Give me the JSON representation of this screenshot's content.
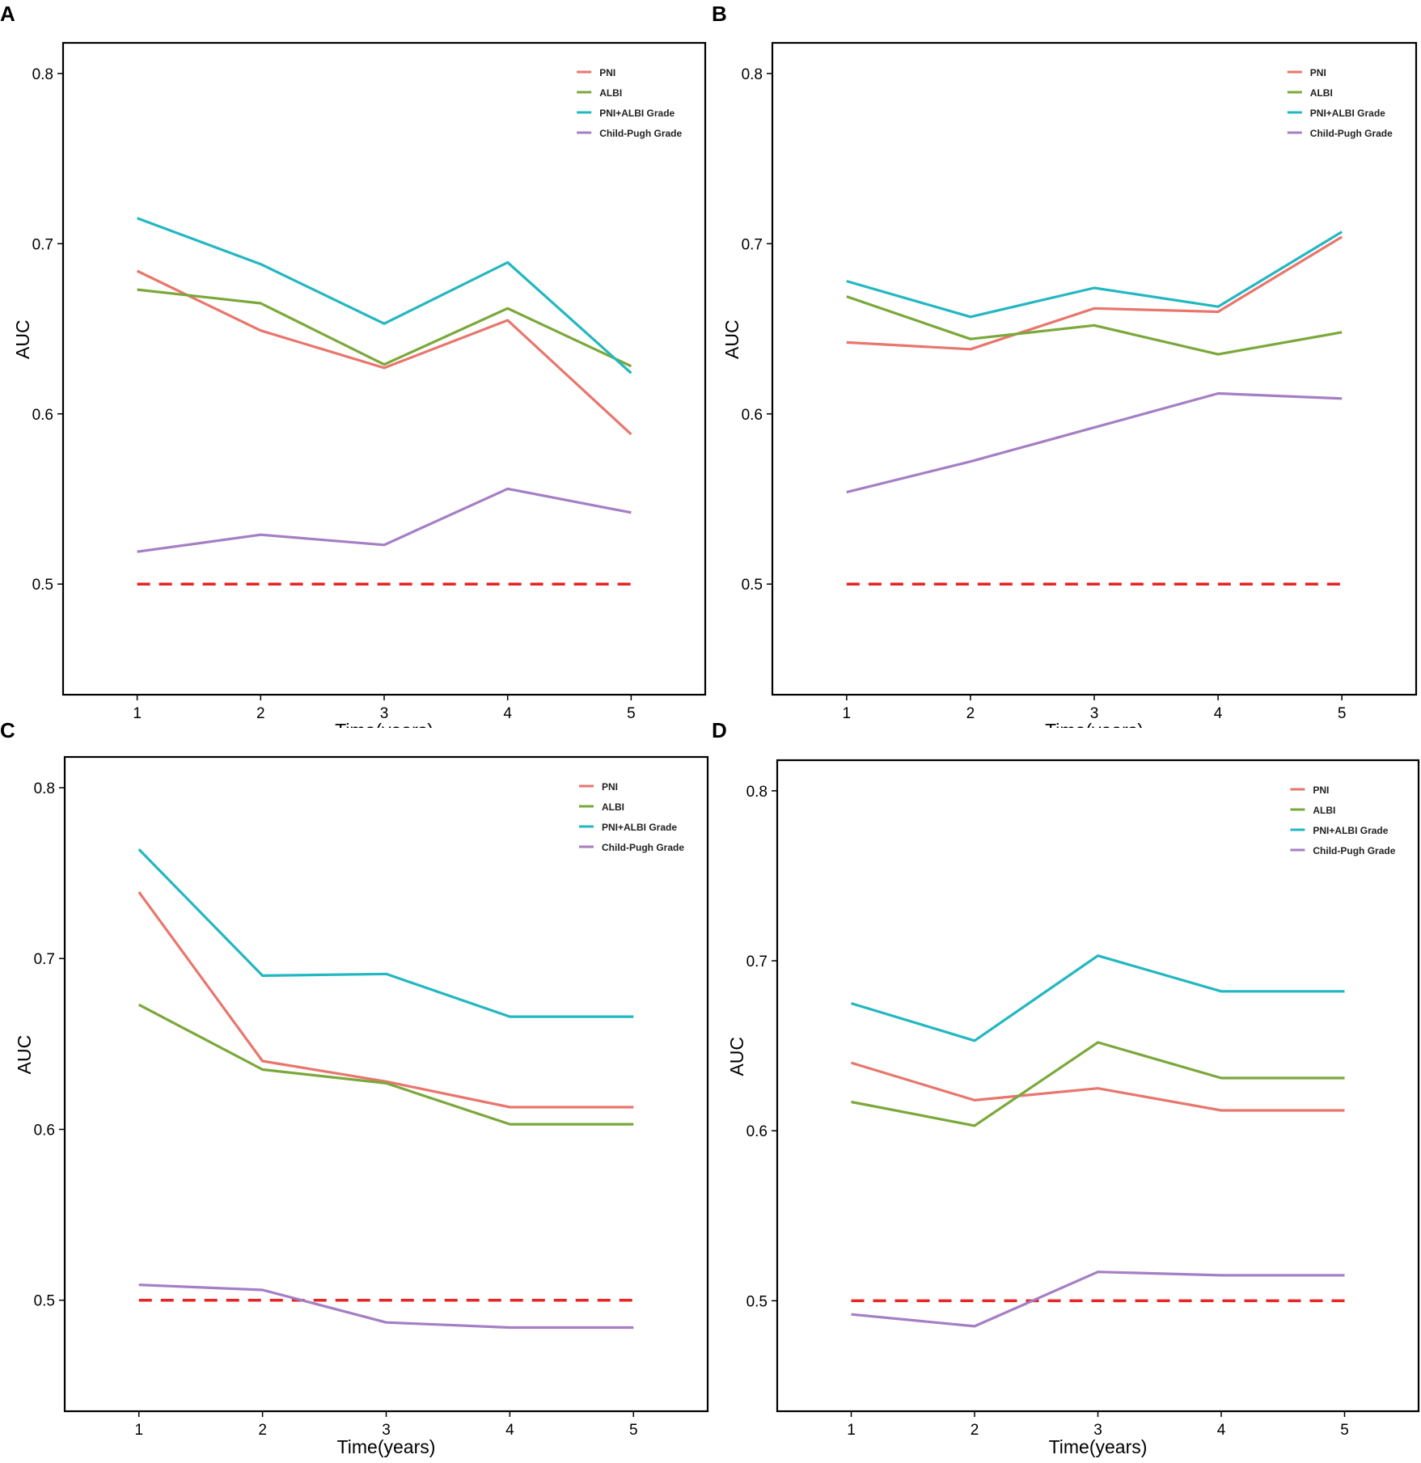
{
  "colors": {
    "PNI": "#e8766d",
    "ALBI": "#7aa83a",
    "PNI+ALBI Grade": "#23b7c1",
    "Child-Pugh Grade": "#a57ec4",
    "reference": "#e82323",
    "axis": "#000000"
  },
  "chart_data": [
    {
      "panel": "A",
      "type": "line",
      "x": [
        1,
        2,
        3,
        4,
        5
      ],
      "xlabel": "Time(years)",
      "ylabel": "AUC",
      "ylim": [
        0.435,
        0.818
      ],
      "yticks": [
        0.5,
        0.6,
        0.7,
        0.8
      ],
      "ytick_labels": [
        "0.5",
        "0.6",
        "0.7",
        "0.8"
      ],
      "xtick_labels": [
        "1",
        "2",
        "3",
        "4",
        "5"
      ],
      "legend_position": "top-right",
      "series": [
        {
          "name": "PNI",
          "values": [
            0.684,
            0.649,
            0.627,
            0.655,
            0.588
          ]
        },
        {
          "name": "ALBI",
          "values": [
            0.673,
            0.665,
            0.629,
            0.662,
            0.628
          ]
        },
        {
          "name": "PNI+ALBI Grade",
          "values": [
            0.715,
            0.688,
            0.653,
            0.689,
            0.624
          ]
        },
        {
          "name": "Child-Pugh Grade",
          "values": [
            0.519,
            0.529,
            0.523,
            0.556,
            0.542
          ]
        }
      ],
      "reference_line": 0.5
    },
    {
      "panel": "B",
      "type": "line",
      "x": [
        1,
        2,
        3,
        4,
        5
      ],
      "xlabel": "Time(years)",
      "ylabel": "AUC",
      "ylim": [
        0.435,
        0.818
      ],
      "yticks": [
        0.5,
        0.6,
        0.7,
        0.8
      ],
      "ytick_labels": [
        "0.5",
        "0.6",
        "0.7",
        "0.8"
      ],
      "xtick_labels": [
        "1",
        "2",
        "3",
        "4",
        "5"
      ],
      "legend_position": "top-right",
      "series": [
        {
          "name": "PNI",
          "values": [
            0.642,
            0.638,
            0.662,
            0.66,
            0.704
          ]
        },
        {
          "name": "ALBI",
          "values": [
            0.669,
            0.644,
            0.652,
            0.635,
            0.648
          ]
        },
        {
          "name": "PNI+ALBI Grade",
          "values": [
            0.678,
            0.657,
            0.674,
            0.663,
            0.707
          ]
        },
        {
          "name": "Child-Pugh Grade",
          "values": [
            0.554,
            0.572,
            0.592,
            0.612,
            0.609
          ]
        }
      ],
      "reference_line": 0.5
    },
    {
      "panel": "C",
      "type": "line",
      "x": [
        1,
        2,
        3,
        4,
        5
      ],
      "xlabel": "Time(years)",
      "ylabel": "AUC",
      "ylim": [
        0.435,
        0.818
      ],
      "yticks": [
        0.5,
        0.6,
        0.7,
        0.8
      ],
      "ytick_labels": [
        "0.5",
        "0.6",
        "0.7",
        "0.8"
      ],
      "xtick_labels": [
        "1",
        "2",
        "3",
        "4",
        "5"
      ],
      "legend_position": "top-right",
      "series": [
        {
          "name": "PNI",
          "values": [
            0.739,
            0.64,
            0.628,
            0.613,
            0.613
          ]
        },
        {
          "name": "ALBI",
          "values": [
            0.673,
            0.635,
            0.627,
            0.603,
            0.603
          ]
        },
        {
          "name": "PNI+ALBI Grade",
          "values": [
            0.764,
            0.69,
            0.691,
            0.666,
            0.666
          ]
        },
        {
          "name": "Child-Pugh Grade",
          "values": [
            0.509,
            0.506,
            0.487,
            0.484,
            0.484
          ]
        }
      ],
      "reference_line": 0.5
    },
    {
      "panel": "D",
      "type": "line",
      "x": [
        1,
        2,
        3,
        4,
        5
      ],
      "xlabel": "Time(years)",
      "ylabel": "AUC",
      "ylim": [
        0.435,
        0.818
      ],
      "yticks": [
        0.5,
        0.6,
        0.7,
        0.8
      ],
      "ytick_labels": [
        "0.5",
        "0.6",
        "0.7",
        "0.8"
      ],
      "xtick_labels": [
        "1",
        "2",
        "3",
        "4",
        "5"
      ],
      "legend_position": "top-right",
      "series": [
        {
          "name": "PNI",
          "values": [
            0.64,
            0.618,
            0.625,
            0.612,
            0.612
          ]
        },
        {
          "name": "ALBI",
          "values": [
            0.617,
            0.603,
            0.652,
            0.631,
            0.631
          ]
        },
        {
          "name": "PNI+ALBI Grade",
          "values": [
            0.675,
            0.653,
            0.703,
            0.682,
            0.682
          ]
        },
        {
          "name": "Child-Pugh Grade",
          "values": [
            0.492,
            0.485,
            0.517,
            0.515,
            0.515
          ]
        }
      ],
      "reference_line": 0.5
    }
  ]
}
